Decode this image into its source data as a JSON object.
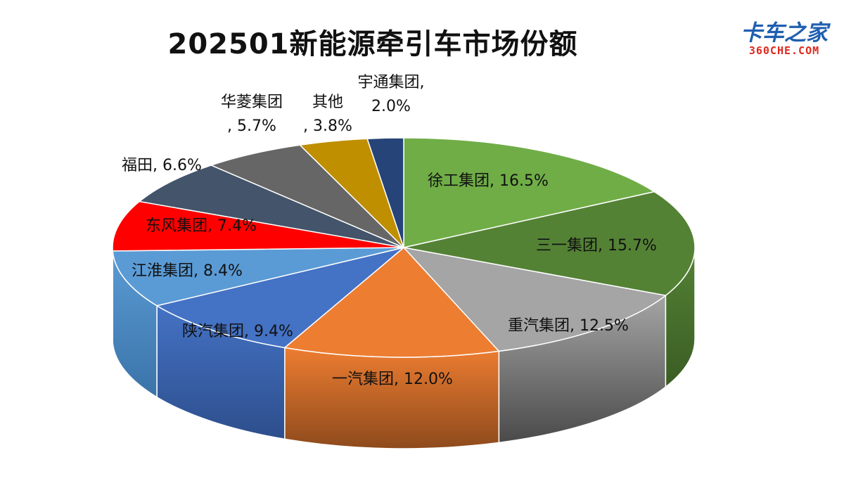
{
  "chart_data": {
    "type": "pie",
    "title": "202501新能源牵引车市场份额",
    "slices": [
      {
        "name": "徐工集团",
        "value": 16.5,
        "label_lines": [
          "徐工集团, 16.5%"
        ],
        "color": "#70ad47",
        "side": "#4f7c31"
      },
      {
        "name": "三一集团",
        "value": 15.7,
        "label_lines": [
          "三一集团, 15.7%"
        ],
        "color": "#548235",
        "side": "#3a5c24"
      },
      {
        "name": "重汽集团",
        "value": 12.5,
        "label_lines": [
          "重汽集团, 12.5%"
        ],
        "color": "#a5a5a5",
        "side": "#4a4a4a"
      },
      {
        "name": "一汽集团",
        "value": 12.0,
        "label_lines": [
          "一汽集团, 12.0%"
        ],
        "color": "#ed7d31",
        "side": "#8e4a1c"
      },
      {
        "name": "陕汽集团",
        "value": 9.4,
        "label_lines": [
          "陕汽集团, 9.4%"
        ],
        "color": "#4472c4",
        "side": "#2d4e8c"
      },
      {
        "name": "江淮集团",
        "value": 8.4,
        "label_lines": [
          "江淮集团, 8.4%"
        ],
        "color": "#5b9bd5",
        "side": "#3a73a8"
      },
      {
        "name": "东风集团",
        "value": 7.4,
        "label_lines": [
          "东风集团, 7.4%"
        ],
        "color": "#ff0000",
        "side": "#a00000"
      },
      {
        "name": "福田",
        "value": 6.6,
        "label_lines": [
          "福田, 6.6%"
        ],
        "color": "#44546a",
        "side": "#2c3746"
      },
      {
        "name": "华菱集团",
        "value": 5.7,
        "label_lines": [
          "华菱集团",
          ", 5.7%"
        ],
        "color": "#666666",
        "side": "#404040"
      },
      {
        "name": "其他",
        "value": 3.8,
        "label_lines": [
          "其他",
          ", 3.8%"
        ],
        "color": "#bf8f00",
        "side": "#7a5b00"
      },
      {
        "name": "宇通集团",
        "value": 2.0,
        "label_lines": [
          "宇通集团,",
          "2.0%"
        ],
        "color": "#264478",
        "side": "#182c4f"
      }
    ]
  },
  "logo": {
    "main": "卡车之家",
    "sub": "360CHE.COM"
  }
}
